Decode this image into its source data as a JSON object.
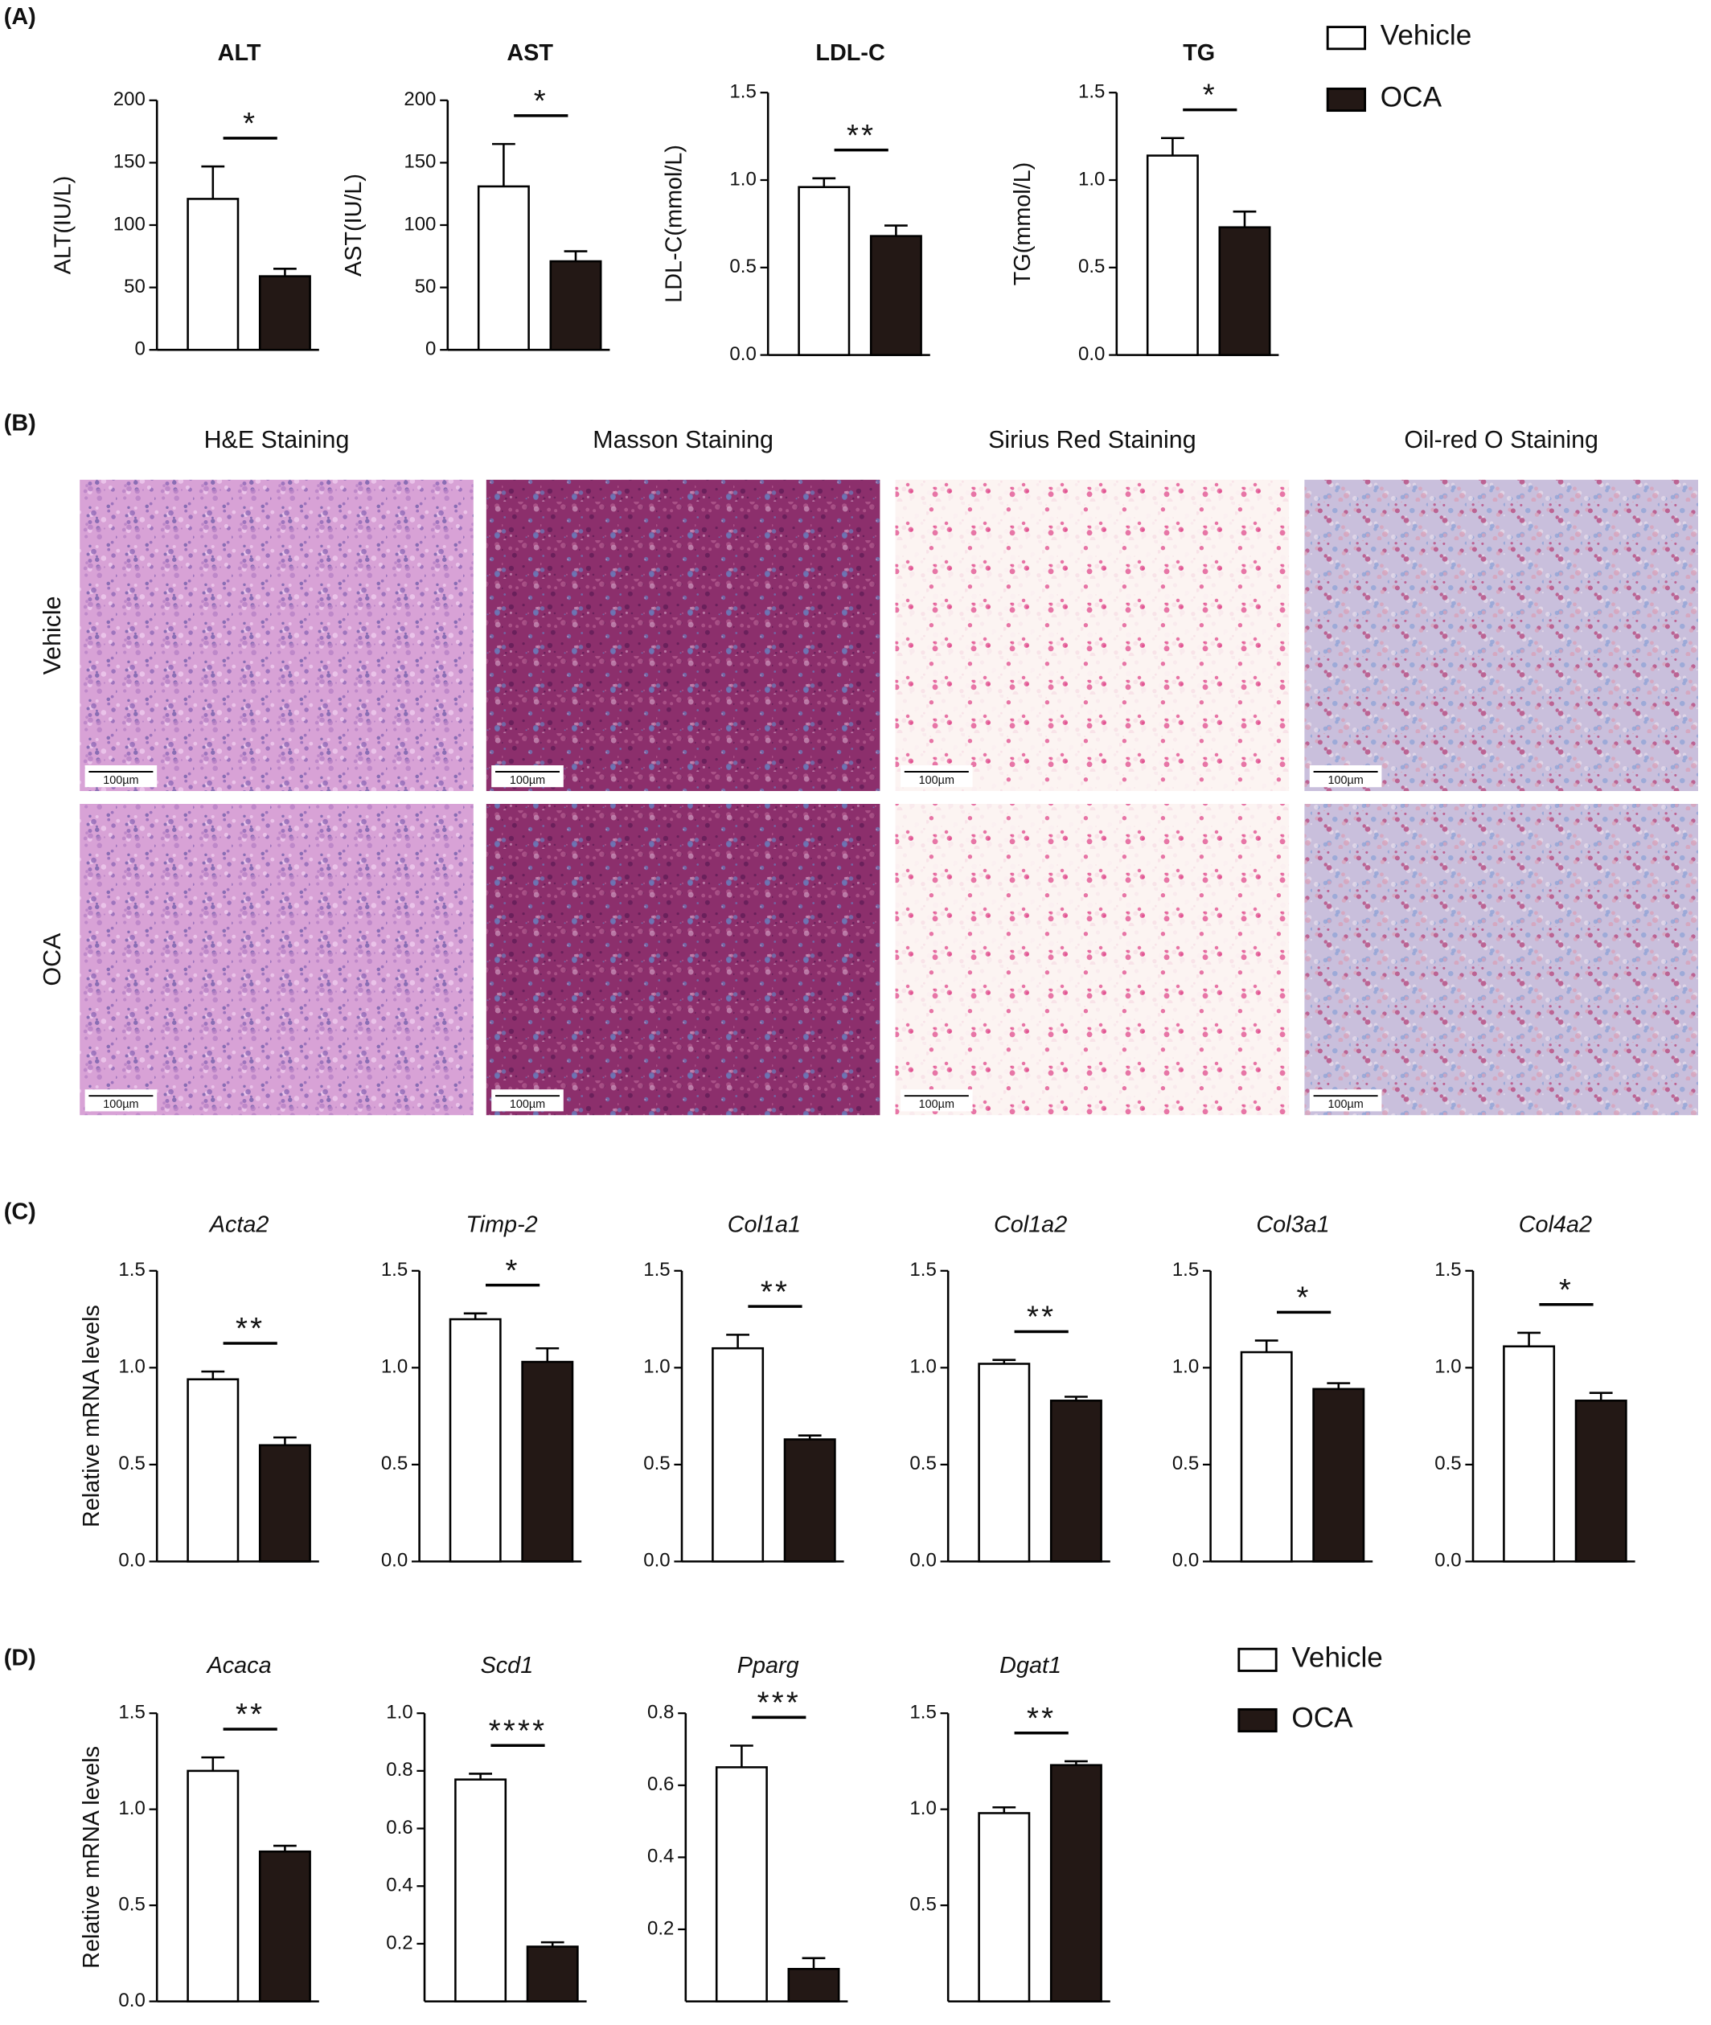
{
  "panel_labels": [
    "(A)",
    "(B)",
    "(C)",
    "(D)"
  ],
  "histology": {
    "columns": [
      "H&E Staining",
      "Masson Staining",
      "Sirius Red Staining",
      "Oil-red O Staining"
    ],
    "rows": [
      "Vehicle",
      "OCA"
    ],
    "scale_bar": "100µm"
  },
  "chart_data": [
    {
      "type": "bar",
      "title": "ALT",
      "ylabel": "ALT(IU/L)",
      "ylim": [
        0,
        200
      ],
      "yticks": [
        0,
        50,
        100,
        150,
        200
      ],
      "significance": "*",
      "series": [
        {
          "name": "Vehicle",
          "color": "#ffffff",
          "values": [
            121
          ],
          "errors": [
            26
          ]
        },
        {
          "name": "OCA",
          "color": "#231815",
          "values": [
            59
          ],
          "errors": [
            6
          ]
        }
      ]
    },
    {
      "type": "bar",
      "title": "AST",
      "ylabel": "AST(IU/L)",
      "ylim": [
        0,
        200
      ],
      "yticks": [
        0,
        50,
        100,
        150,
        200
      ],
      "significance": "*",
      "series": [
        {
          "name": "Vehicle",
          "color": "#ffffff",
          "values": [
            131
          ],
          "errors": [
            34
          ]
        },
        {
          "name": "OCA",
          "color": "#231815",
          "values": [
            71
          ],
          "errors": [
            8
          ]
        }
      ]
    },
    {
      "type": "bar",
      "title": "LDL-C",
      "ylabel": "LDL-C(mmol/L)",
      "ylim": [
        0,
        1.5
      ],
      "yticks": [
        {
          "value": 0,
          "label": "0.0"
        },
        0.5,
        {
          "value": 1,
          "label": "1.0"
        },
        1.5
      ],
      "significance": "**",
      "series": [
        {
          "name": "Vehicle",
          "color": "#ffffff",
          "values": [
            0.96
          ],
          "errors": [
            0.05
          ]
        },
        {
          "name": "OCA",
          "color": "#231815",
          "values": [
            0.68
          ],
          "errors": [
            0.06
          ]
        }
      ]
    },
    {
      "type": "bar",
      "title": "TG",
      "ylabel": "TG(mmol/L)",
      "ylim": [
        0,
        1.5
      ],
      "yticks": [
        {
          "value": 0,
          "label": "0.0"
        },
        0.5,
        {
          "value": 1,
          "label": "1.0"
        },
        1.5
      ],
      "significance": "*",
      "series": [
        {
          "name": "Vehicle",
          "color": "#ffffff",
          "values": [
            1.14
          ],
          "errors": [
            0.1
          ]
        },
        {
          "name": "OCA",
          "color": "#231815",
          "values": [
            0.73
          ],
          "errors": [
            0.09
          ]
        }
      ]
    },
    {
      "type": "bar",
      "title": "Acta2",
      "ylabel": "Relative mRNA levels",
      "ylim": [
        0,
        1.5
      ],
      "yticks": [
        {
          "value": 0,
          "label": "0.0"
        },
        0.5,
        {
          "value": 1,
          "label": "1.0"
        },
        1.5
      ],
      "significance": "**",
      "series": [
        {
          "name": "Vehicle",
          "color": "#ffffff",
          "values": [
            0.94
          ],
          "errors": [
            0.04
          ]
        },
        {
          "name": "OCA",
          "color": "#231815",
          "values": [
            0.6
          ],
          "errors": [
            0.04
          ]
        }
      ]
    },
    {
      "type": "bar",
      "title": "Timp-2",
      "ylim": [
        0,
        1.5
      ],
      "yticks": [
        {
          "value": 0,
          "label": "0.0"
        },
        0.5,
        {
          "value": 1,
          "label": "1.0"
        },
        1.5
      ],
      "significance": "*",
      "series": [
        {
          "name": "Vehicle",
          "color": "#ffffff",
          "values": [
            1.25
          ],
          "errors": [
            0.03
          ]
        },
        {
          "name": "OCA",
          "color": "#231815",
          "values": [
            1.03
          ],
          "errors": [
            0.07
          ]
        }
      ]
    },
    {
      "type": "bar",
      "title": "Col1a1",
      "ylim": [
        0,
        1.5
      ],
      "yticks": [
        {
          "value": 0,
          "label": "0.0"
        },
        0.5,
        {
          "value": 1,
          "label": "1.0"
        },
        1.5
      ],
      "significance": "**",
      "series": [
        {
          "name": "Vehicle",
          "color": "#ffffff",
          "values": [
            1.1
          ],
          "errors": [
            0.07
          ]
        },
        {
          "name": "OCA",
          "color": "#231815",
          "values": [
            0.63
          ],
          "errors": [
            0.02
          ]
        }
      ]
    },
    {
      "type": "bar",
      "title": "Col1a2",
      "ylim": [
        0,
        1.5
      ],
      "yticks": [
        {
          "value": 0,
          "label": "0.0"
        },
        0.5,
        {
          "value": 1,
          "label": "1.0"
        },
        1.5
      ],
      "significance": "**",
      "series": [
        {
          "name": "Vehicle",
          "color": "#ffffff",
          "values": [
            1.02
          ],
          "errors": [
            0.02
          ]
        },
        {
          "name": "OCA",
          "color": "#231815",
          "values": [
            0.83
          ],
          "errors": [
            0.02
          ]
        }
      ]
    },
    {
      "type": "bar",
      "title": "Col3a1",
      "ylim": [
        0,
        1.5
      ],
      "yticks": [
        {
          "value": 0,
          "label": "0.0"
        },
        0.5,
        {
          "value": 1,
          "label": "1.0"
        },
        1.5
      ],
      "significance": "*",
      "series": [
        {
          "name": "Vehicle",
          "color": "#ffffff",
          "values": [
            1.08
          ],
          "errors": [
            0.06
          ]
        },
        {
          "name": "OCA",
          "color": "#231815",
          "values": [
            0.89
          ],
          "errors": [
            0.03
          ]
        }
      ]
    },
    {
      "type": "bar",
      "title": "Col4a2",
      "ylim": [
        0,
        1.5
      ],
      "yticks": [
        {
          "value": 0,
          "label": "0.0"
        },
        0.5,
        {
          "value": 1,
          "label": "1.0"
        },
        1.5
      ],
      "significance": "*",
      "series": [
        {
          "name": "Vehicle",
          "color": "#ffffff",
          "values": [
            1.11
          ],
          "errors": [
            0.07
          ]
        },
        {
          "name": "OCA",
          "color": "#231815",
          "values": [
            0.83
          ],
          "errors": [
            0.04
          ]
        }
      ]
    },
    {
      "type": "bar",
      "title": "Acaca",
      "ylabel": "Relative mRNA levels",
      "ylim": [
        0,
        1.5
      ],
      "yticks": [
        {
          "value": 0,
          "label": "0.0"
        },
        0.5,
        {
          "value": 1,
          "label": "1.0"
        },
        1.5
      ],
      "significance": "**",
      "series": [
        {
          "name": "Vehicle",
          "color": "#ffffff",
          "values": [
            1.2
          ],
          "errors": [
            0.07
          ]
        },
        {
          "name": "OCA",
          "color": "#231815",
          "values": [
            0.78
          ],
          "errors": [
            0.03
          ]
        }
      ]
    },
    {
      "type": "bar",
      "title": "Scd1",
      "ylim": [
        0,
        1
      ],
      "yticks": [
        0.2,
        0.4,
        0.6,
        0.8,
        {
          "value": 1,
          "label": "1.0"
        }
      ],
      "significance": "****",
      "series": [
        {
          "name": "Vehicle",
          "color": "#ffffff",
          "values": [
            0.77
          ],
          "errors": [
            0.02
          ]
        },
        {
          "name": "OCA",
          "color": "#231815",
          "values": [
            0.19
          ],
          "errors": [
            0.015
          ]
        }
      ]
    },
    {
      "type": "bar",
      "title": "Pparg",
      "ylim": [
        0,
        0.8
      ],
      "yticks": [
        0.2,
        0.4,
        0.6,
        0.8
      ],
      "significance": "***",
      "series": [
        {
          "name": "Vehicle",
          "color": "#ffffff",
          "values": [
            0.65
          ],
          "errors": [
            0.06
          ]
        },
        {
          "name": "OCA",
          "color": "#231815",
          "values": [
            0.09
          ],
          "errors": [
            0.03
          ]
        }
      ]
    },
    {
      "type": "bar",
      "title": "Dgat1",
      "ylim": [
        0,
        1.5
      ],
      "yticks": [
        0.5,
        {
          "value": 1,
          "label": "1.0"
        },
        1.5
      ],
      "significance": "**",
      "series": [
        {
          "name": "Vehicle",
          "color": "#ffffff",
          "values": [
            0.98
          ],
          "errors": [
            0.03
          ]
        },
        {
          "name": "OCA",
          "color": "#231815",
          "values": [
            1.23
          ],
          "errors": [
            0.02
          ]
        }
      ]
    }
  ]
}
